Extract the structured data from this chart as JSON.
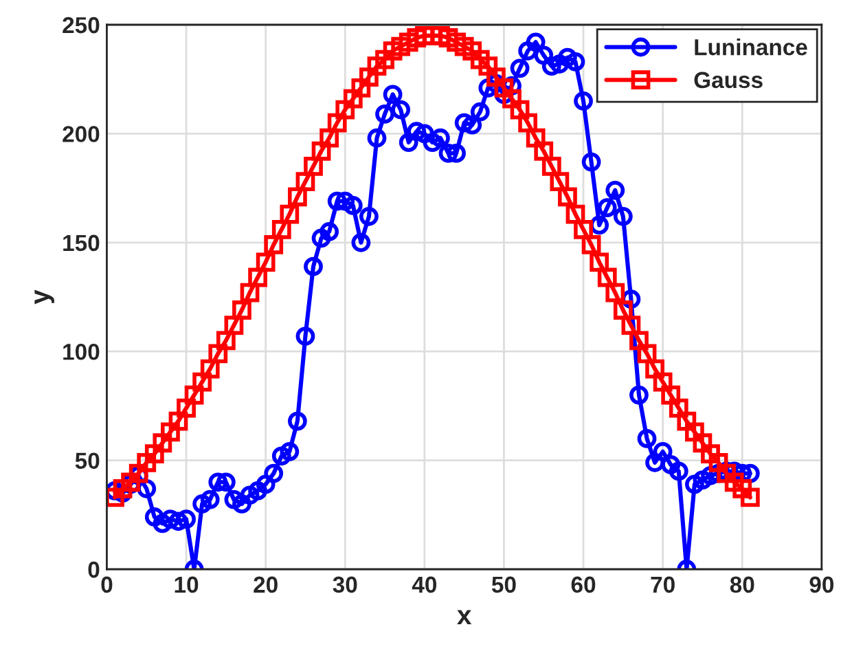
{
  "chart_data": {
    "type": "line",
    "xlabel": "x",
    "ylabel": "y",
    "x": [
      1,
      2,
      3,
      4,
      5,
      6,
      7,
      8,
      9,
      10,
      11,
      12,
      13,
      14,
      15,
      16,
      17,
      18,
      19,
      20,
      21,
      22,
      23,
      24,
      25,
      26,
      27,
      28,
      29,
      30,
      31,
      32,
      33,
      34,
      35,
      36,
      37,
      38,
      39,
      40,
      41,
      42,
      43,
      44,
      45,
      46,
      47,
      48,
      49,
      50,
      51,
      52,
      53,
      54,
      55,
      56,
      57,
      58,
      59,
      60,
      61,
      62,
      63,
      64,
      65,
      66,
      67,
      68,
      69,
      70,
      71,
      72,
      73,
      74,
      75,
      76,
      77,
      78,
      79,
      80,
      81
    ],
    "series": [
      {
        "name": "Luninance",
        "color": "#0000ff",
        "marker": "circle",
        "values": [
          36,
          35,
          39,
          43,
          37,
          24,
          21,
          23,
          22,
          23,
          0,
          30,
          32,
          40,
          40,
          32,
          30,
          34,
          36,
          39,
          44,
          52,
          54,
          68,
          107,
          139,
          152,
          155,
          169,
          169,
          167,
          150,
          162,
          198,
          209,
          218,
          211,
          196,
          201,
          200,
          196,
          198,
          191,
          191,
          205,
          204,
          210,
          221,
          223,
          218,
          222,
          230,
          238,
          242,
          236,
          231,
          232,
          235,
          233,
          215,
          187,
          158,
          166,
          174,
          162,
          124,
          80,
          60,
          49,
          54,
          48,
          45,
          0,
          39,
          41,
          43,
          44,
          45,
          45,
          44,
          44
        ]
      },
      {
        "name": "Gauss",
        "color": "#ff0000",
        "marker": "square",
        "values": [
          33,
          37,
          40,
          44,
          49,
          53,
          58,
          63,
          68,
          74,
          80,
          86,
          92,
          99,
          105,
          112,
          119,
          127,
          134,
          141,
          149,
          156,
          163,
          171,
          178,
          185,
          192,
          198,
          205,
          211,
          216,
          221,
          226,
          231,
          234,
          238,
          240,
          242,
          244,
          245,
          245,
          245,
          244,
          242,
          240,
          238,
          234,
          231,
          226,
          221,
          216,
          211,
          205,
          198,
          192,
          185,
          178,
          171,
          163,
          156,
          149,
          141,
          134,
          127,
          119,
          112,
          105,
          99,
          92,
          86,
          80,
          74,
          68,
          63,
          58,
          53,
          49,
          44,
          40,
          37,
          33
        ]
      }
    ],
    "xlim": [
      0,
      90
    ],
    "xticks": [
      0,
      10,
      20,
      30,
      40,
      50,
      60,
      70,
      80,
      90
    ],
    "ylim": [
      0,
      250
    ],
    "yticks": [
      0,
      50,
      100,
      150,
      200,
      250
    ],
    "grid": true,
    "legend": "top right",
    "line_style": "solid"
  }
}
